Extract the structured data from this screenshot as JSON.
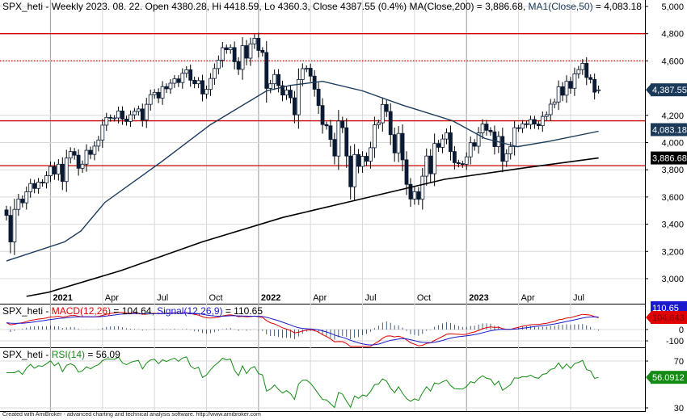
{
  "header": {
    "price": {
      "prefix": "SPX_heti - Weekly 2023. 08. 22. Open 4380.28, Hi 4418.59, Lo 4360.3, Close 4387.55 (0.4%) MA(Close,200) = 3,886.68, ",
      "ma1_label": "MA1(Close,50)",
      "ma1_value": " = 4,083.18"
    },
    "macd": {
      "prefix": "SPX_heti - ",
      "macd_label": "MACD(12,26)",
      "macd_value": " = 104.64, ",
      "signal_label": "Signal(12,26,9)",
      "signal_value": " = 110.65"
    },
    "rsi": {
      "prefix": "SPX_heti - ",
      "rsi_label": "RSI(14)",
      "rsi_value": " = 56.09"
    }
  },
  "footer": "Created with AmiBroker - advanced charting and technical analysis software. http://www.amibroker.com",
  "colors": {
    "ma50": "#1b3a5a",
    "ma200": "#000000",
    "macd": "#e00000",
    "signal": "#1a1acc",
    "rsi": "#138a13",
    "hline": "#cc0000",
    "grid": "#d8d8d8"
  },
  "chart_data": [
    {
      "type": "candlestick",
      "title": "SPX_heti - Weekly",
      "ylim": [
        2800,
        5000
      ],
      "yticks": [
        "5,000",
        "4,800",
        "4,600",
        "4,200",
        "4,000",
        "3,800",
        "3,600",
        "3,400",
        "3,200",
        "3,000"
      ],
      "ytick_values": [
        5000,
        4800,
        4600,
        4200,
        4000,
        3800,
        3600,
        3400,
        3200,
        3000
      ],
      "x_labels": [
        {
          "week": 11,
          "label": "2021",
          "year": true
        },
        {
          "week": 24,
          "label": "Apr"
        },
        {
          "week": 37,
          "label": "Jul"
        },
        {
          "week": 50,
          "label": "Oct"
        },
        {
          "week": 63,
          "label": "2022",
          "year": true
        },
        {
          "week": 76,
          "label": "Apr"
        },
        {
          "week": 89,
          "label": "Jul"
        },
        {
          "week": 102,
          "label": "Oct"
        },
        {
          "week": 115,
          "label": "2023",
          "year": true
        },
        {
          "week": 128,
          "label": "Apr"
        },
        {
          "week": 141,
          "label": "Jul"
        }
      ],
      "close": [
        3465,
        3270,
        3509,
        3585,
        3557,
        3638,
        3699,
        3663,
        3709,
        3703,
        3756,
        3824,
        3768,
        3841,
        3714,
        3886,
        3934,
        3907,
        3811,
        3841,
        3943,
        3913,
        3974,
        4019,
        4128,
        4185,
        4180,
        4181,
        4232,
        4173,
        4155,
        4204,
        4229,
        4247,
        4166,
        4281,
        4352,
        4369,
        4327,
        4411,
        4395,
        4436,
        4468,
        4441,
        4509,
        4535,
        4458,
        4432,
        4455,
        4357,
        4391,
        4471,
        4544,
        4605,
        4697,
        4682,
        4698,
        4594,
        4538,
        4712,
        4620,
        4725,
        4766,
        4677,
        4662,
        4398,
        4432,
        4500,
        4418,
        4349,
        4385,
        4329,
        4204,
        4463,
        4543,
        4546,
        4488,
        4392,
        4272,
        4132,
        4123,
        4023,
        3901,
        4158,
        4109,
        3901,
        3675,
        3912,
        3825,
        3899,
        3863,
        3962,
        4130,
        4145,
        4280,
        4228,
        4058,
        3924,
        4067,
        3873,
        3693,
        3585,
        3639,
        3583,
        3753,
        3901,
        3771,
        3993,
        3965,
        4026,
        4072,
        3934,
        3852,
        3845,
        3840,
        3895,
        3999,
        3973,
        4071,
        4136,
        4090,
        4079,
        3970,
        4045,
        3862,
        3917,
        3971,
        4109,
        4105,
        4138,
        4133,
        4169,
        4136,
        4124,
        4192,
        4205,
        4282,
        4298,
        4410,
        4348,
        4450,
        4399,
        4505,
        4536,
        4582,
        4478,
        4464,
        4370,
        4387.55
      ],
      "last": {
        "open": 4380.28,
        "high": 4418.59,
        "low": 4360.3,
        "close": 4387.55,
        "change_pct": 0.4
      },
      "ma50": [
        [
          0,
          3130
        ],
        [
          14.5,
          3270
        ],
        [
          18.6,
          3350
        ],
        [
          24.6,
          3560
        ],
        [
          38.8,
          3860
        ],
        [
          50.9,
          4130
        ],
        [
          65,
          4380
        ],
        [
          71,
          4420
        ],
        [
          79,
          4450
        ],
        [
          89,
          4380
        ],
        [
          99,
          4275
        ],
        [
          111.5,
          4160
        ],
        [
          119.6,
          4030
        ],
        [
          127.7,
          3970
        ],
        [
          135.8,
          4010
        ],
        [
          148,
          4083.18
        ]
      ],
      "ma200": [
        [
          5,
          2870
        ],
        [
          10.5,
          2900
        ],
        [
          28.7,
          3060
        ],
        [
          48.9,
          3270
        ],
        [
          69.1,
          3450
        ],
        [
          89.3,
          3590
        ],
        [
          109.5,
          3730
        ],
        [
          129.7,
          3815
        ],
        [
          148,
          3886.68
        ]
      ],
      "hlines": [
        {
          "value": 4800,
          "style": "solid"
        },
        {
          "value": 4600,
          "style": "dotted"
        },
        {
          "value": 4160,
          "style": "solid"
        },
        {
          "value": 3830,
          "style": "solid"
        }
      ],
      "value_labels": {
        "close": "4,387.55",
        "ma50": "4,083.18",
        "ma200": "3,886.68"
      }
    },
    {
      "type": "line",
      "title": "MACD(12,26) / Signal(12,26,9)",
      "yticks": [
        "0",
        "-100"
      ],
      "ytick_values": [
        0,
        -100
      ],
      "value_labels": {
        "signal": "110.65",
        "macd": "104.643"
      }
    },
    {
      "type": "line",
      "title": "RSI(14)",
      "yticks": [
        "70",
        "30"
      ],
      "ytick_values": [
        70,
        30
      ],
      "value_labels": {
        "rsi": "56.0912"
      }
    }
  ]
}
